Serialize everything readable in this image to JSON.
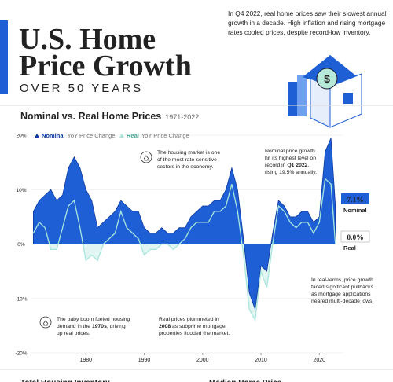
{
  "header": {
    "title_lines": [
      "U.S. Home",
      "Price Growth"
    ],
    "subtitle": "OVER 50 YEARS",
    "intro_lines": [
      "In Q4 2022, real home prices saw their slowest annual",
      "growth in a decade. High inflation and rising mortgage",
      "rates cooled prices, despite record-low inventory."
    ]
  },
  "chart_data": {
    "type": "area",
    "title": "Nominal vs. Real Home Prices",
    "subtitle": "1971-2022",
    "x": [
      1971,
      1972,
      1973,
      1974,
      1975,
      1976,
      1977,
      1978,
      1979,
      1980,
      1981,
      1982,
      1983,
      1984,
      1985,
      1986,
      1987,
      1988,
      1989,
      1990,
      1991,
      1992,
      1993,
      1994,
      1995,
      1996,
      1997,
      1998,
      1999,
      2000,
      2001,
      2002,
      2003,
      2004,
      2005,
      2006,
      2007,
      2008,
      2009,
      2010,
      2011,
      2012,
      2013,
      2014,
      2015,
      2016,
      2017,
      2018,
      2019,
      2020,
      2021,
      2022,
      2022.75
    ],
    "series": [
      {
        "name": "Nominal",
        "legend_suffix": "YoY Price Change",
        "color": "#1f5fd6",
        "values": [
          6,
          8,
          9,
          10,
          8,
          9,
          14,
          16,
          14,
          10,
          8,
          3,
          4,
          5,
          6,
          8,
          7,
          6,
          6,
          3,
          2,
          2,
          3,
          2,
          2,
          3,
          3,
          5,
          6,
          7,
          7,
          8,
          8,
          10,
          14,
          10,
          1,
          -9,
          -12,
          -4,
          -5,
          2,
          8,
          7,
          5,
          5,
          6,
          6,
          4,
          5,
          17,
          19.5,
          7.1
        ],
        "value_labels": [
          null,
          null,
          null,
          null,
          null,
          null,
          null,
          null,
          null,
          null,
          null,
          null,
          null,
          null,
          null,
          null,
          null,
          null,
          null,
          null,
          null,
          null,
          null,
          null,
          null,
          null,
          null,
          null,
          null,
          null,
          null,
          null,
          null,
          null,
          null,
          null,
          null,
          null,
          null,
          null,
          null,
          null,
          null,
          null,
          null,
          null,
          null,
          null,
          null,
          null,
          null,
          null,
          "7.1%"
        ]
      },
      {
        "name": "Real",
        "legend_suffix": "YoY Price Change",
        "color": "#a8e6dc",
        "values": [
          2,
          4,
          3,
          -1,
          -1,
          3,
          7,
          8,
          3,
          -3,
          -2,
          -3,
          0,
          1,
          2,
          6,
          3,
          2,
          1,
          -2,
          -1,
          -1,
          0,
          0,
          -1,
          0,
          1,
          3,
          4,
          4,
          4,
          6,
          6,
          7,
          11,
          6,
          -2,
          -12,
          -14,
          -5,
          -8,
          0,
          7,
          6,
          4,
          3,
          4,
          4,
          2,
          4,
          12,
          11,
          0.0
        ],
        "value_labels": [
          null,
          null,
          null,
          null,
          null,
          null,
          null,
          null,
          null,
          null,
          null,
          null,
          null,
          null,
          null,
          null,
          null,
          null,
          null,
          null,
          null,
          null,
          null,
          null,
          null,
          null,
          null,
          null,
          null,
          null,
          null,
          null,
          null,
          null,
          null,
          null,
          null,
          null,
          null,
          null,
          null,
          null,
          null,
          null,
          null,
          null,
          null,
          null,
          null,
          null,
          null,
          null,
          "0.0%"
        ]
      }
    ],
    "xlim": [
      1970,
      2024
    ],
    "xticks": [
      1980,
      1990,
      2000,
      2010,
      2020
    ],
    "ylim": [
      -20,
      20
    ],
    "yticks": [
      {
        "value": -20,
        "label": "-20%"
      },
      {
        "value": -10,
        "label": "-10%"
      },
      {
        "value": 0,
        "label": "0%"
      },
      {
        "value": 10,
        "label": "10%"
      },
      {
        "value": 20,
        "label": "20%"
      }
    ],
    "grid": true,
    "annotations": [
      {
        "lines": [
          [
            "The housing market is one"
          ],
          [
            "of the most rate-sensitive"
          ],
          [
            "sectors in the economy."
          ]
        ]
      },
      {
        "lines": [
          [
            "Nominal price growth"
          ],
          [
            "hit its highest level on"
          ],
          [
            "record in ",
            {
              "bold": "Q1 2022"
            },
            ","
          ],
          [
            "rising 19.5% annually."
          ]
        ]
      },
      {
        "lines": [
          [
            "In real-terms, price growth"
          ],
          [
            "faced significant pullbacks"
          ],
          [
            "as mortgage applications"
          ],
          [
            "neared multi-decade lows."
          ]
        ]
      },
      {
        "lines": [
          [
            "The baby boom fueled housing"
          ],
          [
            "demand in the ",
            {
              "bold": "1970s"
            },
            ", driving"
          ],
          [
            "up real prices."
          ]
        ]
      },
      {
        "lines": [
          [
            "Real prices plummeted in"
          ],
          [
            {
              "bold": "2008"
            },
            " as subprime mortgage"
          ],
          [
            "properties flooded the market."
          ]
        ]
      }
    ]
  },
  "footer": [
    "Total Housing Inventory",
    "Median Home Price"
  ]
}
